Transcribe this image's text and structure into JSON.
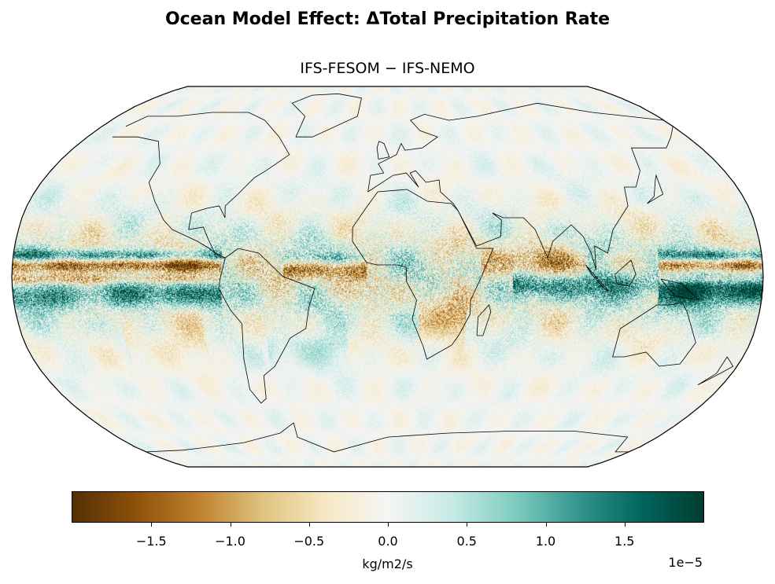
{
  "title": "Ocean Model Effect: ΔTotal Precipitation Rate",
  "subtitle": "IFS-FESOM − IFS-NEMO",
  "map": {
    "projection": "Robinson",
    "central_longitude": 0,
    "coastlines": true,
    "field": "Difference in total precipitation rate"
  },
  "colorbar": {
    "label": "kg/m2/s",
    "scale_label": "1e−5",
    "vmin": -2,
    "vmax": 2,
    "colormap": "BrBG",
    "colors": [
      "#543005",
      "#8c510a",
      "#bf812d",
      "#dfc27d",
      "#f6e8c3",
      "#f5f5f5",
      "#c7eae5",
      "#80cdc1",
      "#35978f",
      "#01665e",
      "#003c30"
    ],
    "ticks": [
      {
        "value": -1.5,
        "label": "−1.5"
      },
      {
        "value": -1.0,
        "label": "−1.0"
      },
      {
        "value": -0.5,
        "label": "−0.5"
      },
      {
        "value": 0.0,
        "label": "0.0"
      },
      {
        "value": 0.5,
        "label": "0.5"
      },
      {
        "value": 1.0,
        "label": "1.0"
      },
      {
        "value": 1.5,
        "label": "1.5"
      }
    ]
  }
}
